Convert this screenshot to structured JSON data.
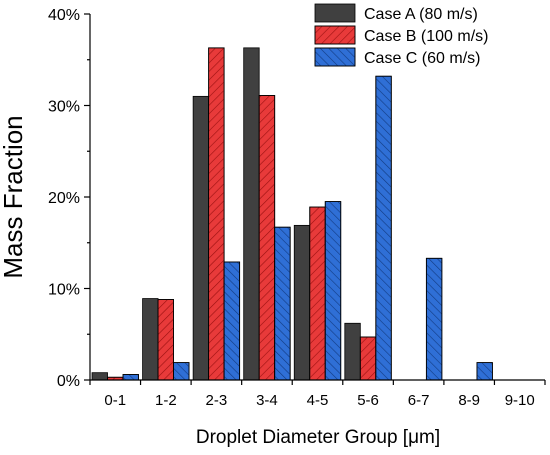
{
  "chart_data": {
    "type": "bar",
    "title": "",
    "xlabel": "Droplet Diameter Group [μm]",
    "ylabel": "Mass Fraction",
    "categories": [
      "0-1",
      "1-2",
      "2-3",
      "3-4",
      "4-5",
      "5-6",
      "6-7",
      "8-9",
      "9-10"
    ],
    "ylim": [
      0,
      40
    ],
    "yticks": [
      "0%",
      "10%",
      "20%",
      "30%",
      "40%"
    ],
    "grid": false,
    "legend_position": "top-right",
    "series": [
      {
        "name": "Case A (80 m/s)",
        "values": [
          0.8,
          8.9,
          31.0,
          36.3,
          16.9,
          6.2,
          0,
          0,
          0
        ],
        "color": "#404040",
        "hatch": "none"
      },
      {
        "name": "Case B (100 m/s)",
        "values": [
          0.3,
          8.8,
          36.3,
          31.1,
          18.9,
          4.7,
          0,
          0,
          0
        ],
        "color": "#e83a3a",
        "hatch": "right"
      },
      {
        "name": "Case C (60 m/s)",
        "values": [
          0.6,
          1.9,
          12.9,
          16.7,
          19.5,
          33.2,
          13.3,
          1.9,
          0
        ],
        "color": "#2f6fd6",
        "hatch": "left"
      }
    ]
  }
}
